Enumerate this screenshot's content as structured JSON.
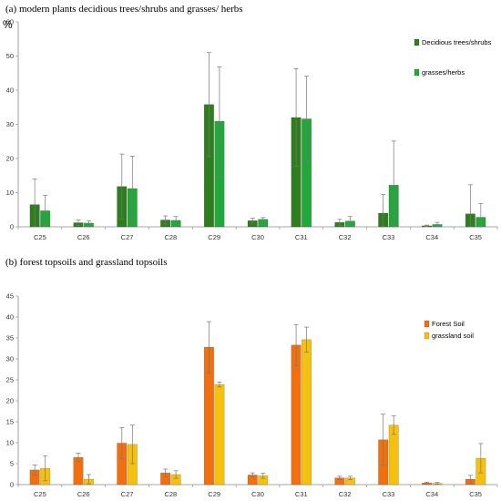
{
  "unit_label": "%",
  "chart_data": [
    {
      "type": "bar",
      "title": "(a) modern plants  decidious trees/shrubs  and grasses/ herbs",
      "categories": [
        "C25",
        "C26",
        "C27",
        "C28",
        "C29",
        "C30",
        "C31",
        "C32",
        "C33",
        "C34",
        "C35"
      ],
      "ylim": [
        0,
        60
      ],
      "yticks": [
        0,
        10,
        20,
        30,
        40,
        50,
        60
      ],
      "grid": false,
      "legend_position": "right",
      "series": [
        {
          "name": "Decidious trees/shrubs",
          "color": "#2e7d1f",
          "values": [
            6.5,
            1.2,
            11.8,
            2.0,
            35.8,
            1.8,
            32.0,
            1.3,
            4.0,
            0.3,
            3.8
          ],
          "errors": [
            7.5,
            0.8,
            9.5,
            1.2,
            15.2,
            0.7,
            14.3,
            0.9,
            5.5,
            0.2,
            8.5
          ]
        },
        {
          "name": "grasses/herbs",
          "color": "#22a83a",
          "values": [
            4.7,
            1.1,
            11.2,
            1.9,
            30.9,
            2.2,
            31.6,
            1.7,
            12.2,
            0.7,
            2.8
          ],
          "errors": [
            4.5,
            0.7,
            9.5,
            1.1,
            15.9,
            0.5,
            12.5,
            1.3,
            12.9,
            0.6,
            4.0
          ]
        }
      ]
    },
    {
      "type": "bar",
      "title": "(b)  forest topsoils  and grassland  topsoils",
      "categories": [
        "C25",
        "C26",
        "C27",
        "C28",
        "C29",
        "C30",
        "C31",
        "C32",
        "C33",
        "C34",
        "C35"
      ],
      "ylim": [
        0,
        45
      ],
      "yticks": [
        0,
        5,
        10,
        15,
        20,
        25,
        30,
        35,
        40,
        45
      ],
      "grid": false,
      "legend_position": "right",
      "series": [
        {
          "name": "Forest Soil",
          "color": "#f07010",
          "values": [
            3.5,
            6.5,
            9.9,
            2.8,
            32.8,
            2.3,
            33.3,
            1.6,
            10.7,
            0.4,
            1.3
          ],
          "errors": [
            1.2,
            1.0,
            3.7,
            0.9,
            6.1,
            0.5,
            4.9,
            0.4,
            6.1,
            0.2,
            0.9
          ]
        },
        {
          "name": "grassland soil",
          "color": "#f5c10e",
          "values": [
            3.9,
            1.3,
            9.6,
            2.4,
            23.9,
            2.1,
            34.6,
            1.6,
            14.2,
            0.3,
            6.3
          ],
          "errors": [
            3.0,
            1.1,
            4.6,
            0.9,
            0.6,
            0.6,
            3.0,
            0.4,
            2.2,
            0.2,
            3.5
          ]
        }
      ]
    }
  ]
}
